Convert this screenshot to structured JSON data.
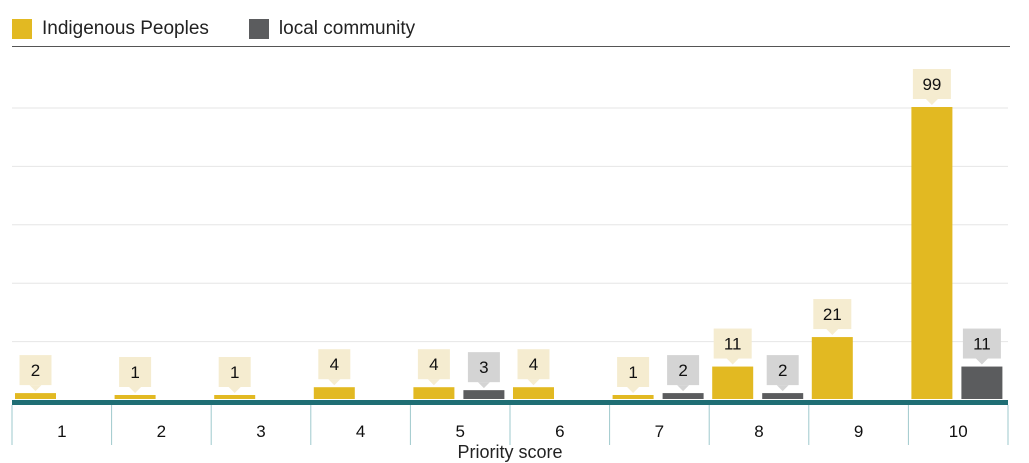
{
  "legend": {
    "indigenous_label": "Indigenous Peoples",
    "local_label": "local community"
  },
  "colors": {
    "indigenous": "#e2b922",
    "local": "#5b5c5e",
    "indigenous_label_bg": "#f5ecd0",
    "local_label_bg": "#d4d4d4",
    "axis": "#1f6e74",
    "grid": "#e6e6e6"
  },
  "chart_data": {
    "type": "bar",
    "xlabel": "Priority score",
    "ylabel": "",
    "categories": [
      "1",
      "2",
      "3",
      "4",
      "5",
      "6",
      "7",
      "8",
      "9",
      "10"
    ],
    "series": [
      {
        "name": "Indigenous Peoples",
        "values": [
          2,
          1,
          1,
          4,
          4,
          4,
          1,
          11,
          21,
          99
        ]
      },
      {
        "name": "local community",
        "values": [
          null,
          null,
          null,
          null,
          3,
          null,
          2,
          2,
          null,
          11
        ]
      }
    ],
    "ylim": [
      0,
      100
    ],
    "grid": true,
    "legend_position": "top-left"
  }
}
